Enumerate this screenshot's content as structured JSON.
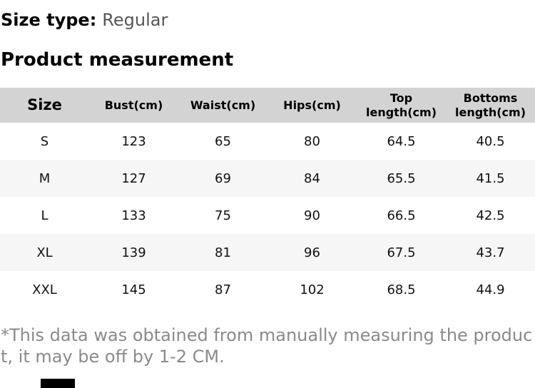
{
  "page": {
    "size_type_label": "Size type:",
    "size_type_value": "Regular",
    "section_title": "Product measurement"
  },
  "table": {
    "columns": [
      "Size",
      "Bust(cm)",
      "Waist(cm)",
      "Hips(cm)",
      "Top\nlength(cm)",
      "Bottoms\nlength(cm)"
    ],
    "rows": [
      {
        "size": "S",
        "values": [
          "123",
          "65",
          "80",
          "64.5",
          "40.5"
        ]
      },
      {
        "size": "M",
        "values": [
          "127",
          "69",
          "84",
          "65.5",
          "41.5"
        ]
      },
      {
        "size": "L",
        "values": [
          "133",
          "75",
          "90",
          "66.5",
          "42.5"
        ]
      },
      {
        "size": "XL",
        "values": [
          "139",
          "81",
          "96",
          "67.5",
          "43.7"
        ]
      },
      {
        "size": "XXL",
        "values": [
          "145",
          "87",
          "102",
          "68.5",
          "44.9"
        ]
      }
    ]
  },
  "footnote": "*This data was obtained from manually measuring the product, it may be off by 1-2 CM.",
  "colors": {
    "header_bg": "#d3d3d3",
    "alt_row_bg": "#f6f6f6",
    "text": "#111111",
    "muted_value": "#555555",
    "footnote": "#8a8a8a",
    "bottom_bar": "#000000"
  }
}
